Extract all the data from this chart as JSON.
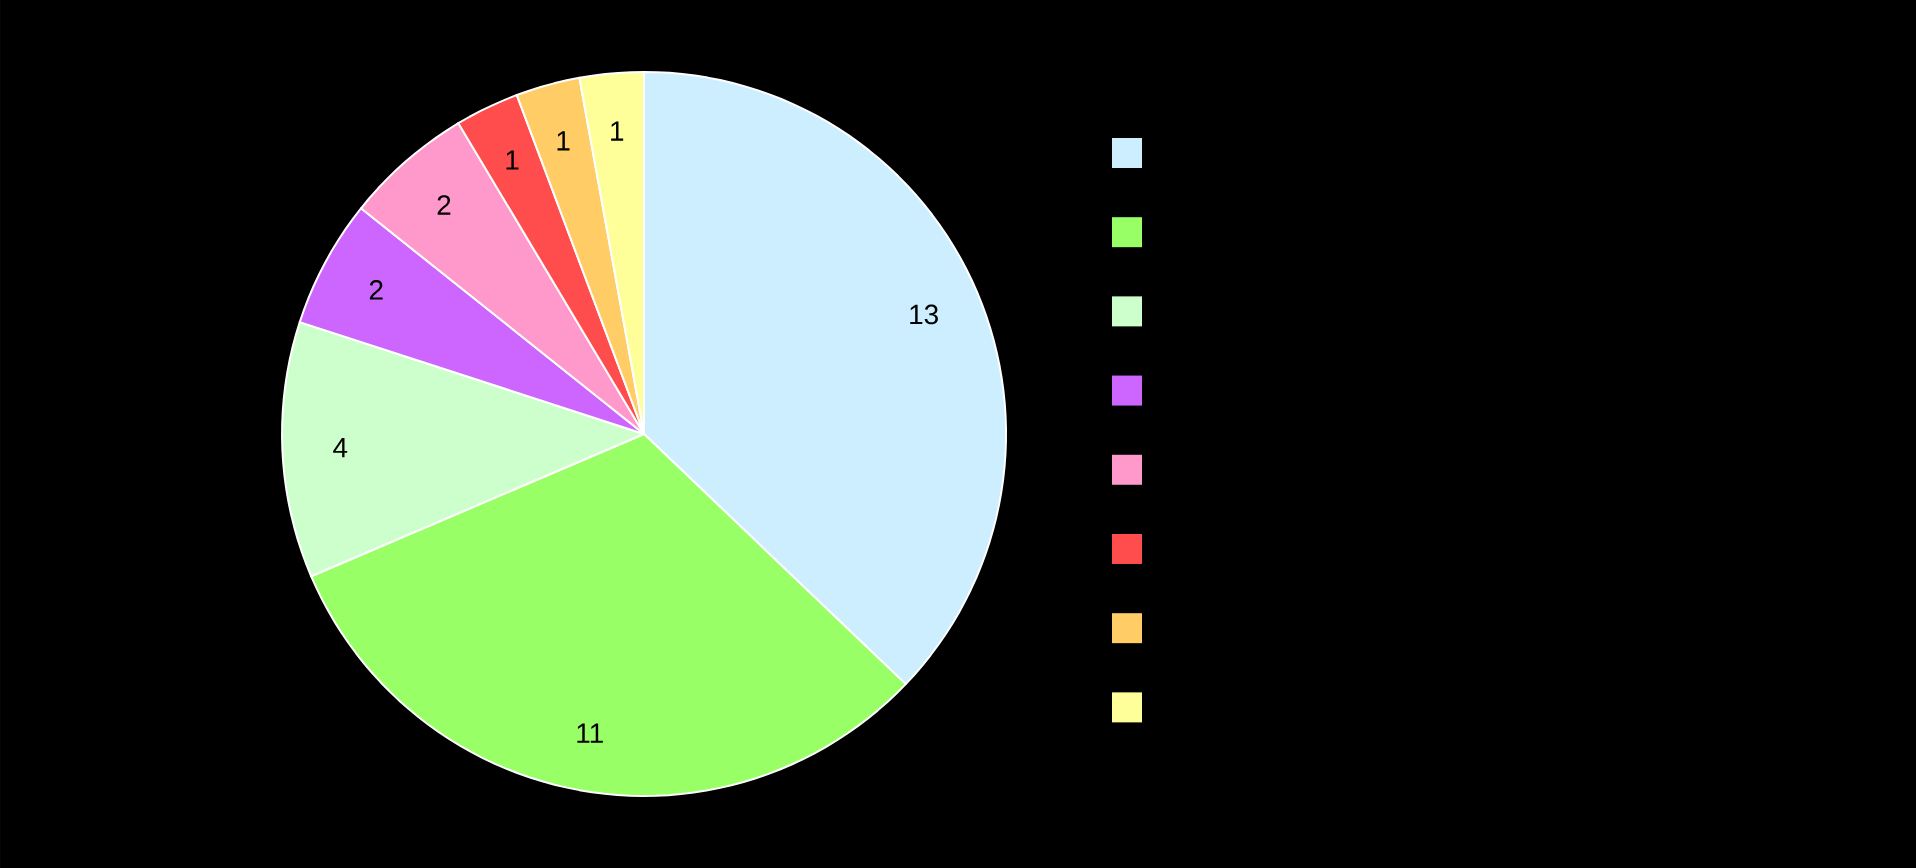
{
  "chart_data": {
    "type": "pie",
    "categories": [
      null,
      null,
      null,
      null,
      null,
      null,
      null,
      null
    ],
    "values": [
      13,
      11,
      4,
      2,
      2,
      1,
      1,
      1
    ],
    "colors": [
      "#cceeff",
      "#99ff66",
      "#ccffcc",
      "#cc66ff",
      "#ff99cc",
      "#ff4d4d",
      "#ffcc66",
      "#ffff99"
    ],
    "data_labels": true
  }
}
